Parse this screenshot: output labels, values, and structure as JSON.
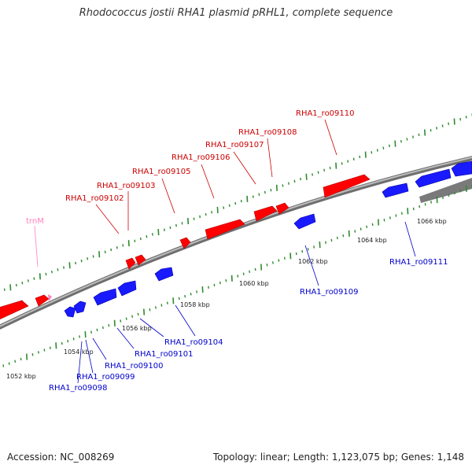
{
  "title": "Rhodococcus jostii RHA1 plasmid pRHL1, complete sequence",
  "footer": {
    "accession": "Accession: NC_008269",
    "summary": "Topology: linear; Length: 1,123,075 bp; Genes: 1,148"
  },
  "colors": {
    "forward": "#ff0000",
    "reverse": "#0000ee",
    "rna": "#ff80c0",
    "backbone": "#808080",
    "ticks": "#2e8b2e"
  },
  "scale": {
    "labels": [
      "1052 kbp",
      "1054 kbp",
      "1056 kbp",
      "1058 kbp",
      "1060 kbp",
      "1062 kbp",
      "1064 kbp",
      "1066 kbp"
    ]
  },
  "genes": {
    "forward": [
      "RHA1_ro09102",
      "RHA1_ro09103",
      "RHA1_ro09105",
      "RHA1_ro09106",
      "RHA1_ro09107",
      "RHA1_ro09108",
      "RHA1_ro09110"
    ],
    "reverse": [
      "RHA1_ro09098",
      "RHA1_ro09099",
      "RHA1_ro09100",
      "RHA1_ro09101",
      "RHA1_ro09104",
      "RHA1_ro09109",
      "RHA1_ro09111"
    ],
    "rna": [
      "trnM"
    ]
  }
}
